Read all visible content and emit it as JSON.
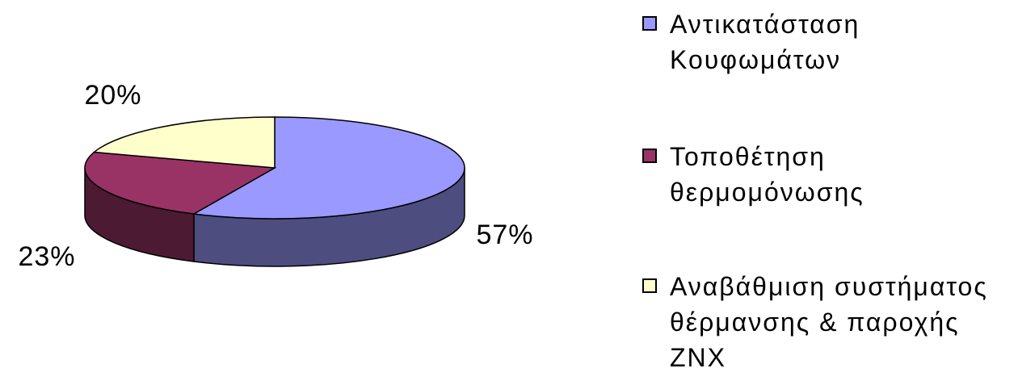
{
  "chart_data": {
    "type": "pie3d",
    "categories": [
      "Αντικατάσταση Κουφωμάτων",
      "Τοποθέτηση θερμομόνωσης",
      "Αναβάθμιση συστήματος θέρμανσης & παροχής ΖΝΧ"
    ],
    "values": [
      57,
      23,
      20
    ],
    "value_labels": [
      "57%",
      "23%",
      "20%"
    ],
    "colors": [
      "#9999ff",
      "#993366",
      "#ffffcc"
    ],
    "legend": "right"
  }
}
